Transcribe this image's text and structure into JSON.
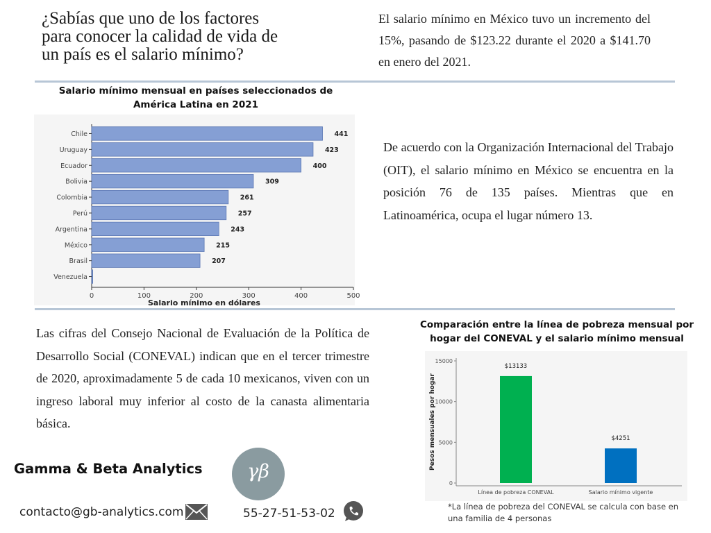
{
  "headline": "¿Sabías que uno de los factores para conocer la calidad de vida de un país es el salario mínimo?",
  "intro_text": "El salario mínimo en México tuvo un incremento del 15%, pasando de $123.22 durante el 2020 a $141.70 en enero del 2021.",
  "oit_text": "De acuerdo con la Organización Internacional del Trabajo (OIT), el salario mínimo en México se encuentra en la posición 76 de 135 países. Mientras que en Latinoamérica, ocupa el lugar número 13.",
  "coneval_text": "Las cifras del Consejo Nacional de Evaluación de la Política de Desarrollo Social (CONEVAL) indican que en el tercer trimestre de 2020, aproximadamente  5 de cada 10 mexicanos, viven con un ingreso laboral muy inferior al costo de la canasta alimentaria básica.",
  "chart_data": [
    {
      "type": "bar",
      "orientation": "horizontal",
      "title": "Salario mínimo mensual en países seleccionados de América Latina en 2021",
      "xlabel": "Salario mínimo en dólares",
      "ylabel": "",
      "categories": [
        "Chile",
        "Uruguay",
        "Ecuador",
        "Bolivia",
        "Colombia",
        "Perú",
        "Argentina",
        "México",
        "Brasil",
        "Venezuela"
      ],
      "values": [
        441,
        423,
        400,
        309,
        261,
        257,
        243,
        215,
        207,
        2
      ],
      "data_labels": [
        "441",
        "423",
        "400",
        "309",
        "261",
        "257",
        "243",
        "215",
        "207",
        ""
      ],
      "xlim": [
        0,
        500
      ],
      "xticks": [
        0,
        100,
        200,
        300,
        400,
        500
      ],
      "bar_color": "#859fd4",
      "bar_edge": "#5b77b3",
      "grid": false
    },
    {
      "type": "bar",
      "orientation": "vertical",
      "title": "Comparación entre la línea de pobreza mensual por hogar del CONEVAL y el salario mínimo mensual",
      "xlabel": "",
      "ylabel": "Pesos mensuales por hogar",
      "categories": [
        "Línea de pobreza CONEVAL",
        "Salario mínimo vigente"
      ],
      "values": [
        13133,
        4251
      ],
      "data_labels": [
        "$13133",
        "$4251"
      ],
      "colors": [
        "#00b050",
        "#0070c0"
      ],
      "ylim": [
        0,
        15000
      ],
      "yticks": [
        0,
        5000,
        10000,
        15000
      ],
      "grid": false
    }
  ],
  "note_text": "*La línea de pobreza del CONEVAL  se calcula con  base  en una familia de 4 personas",
  "company_name": "Gamma & Beta  Analytics",
  "logo_text": "γβ",
  "email": "contacto@gb-analytics.com",
  "phone": "55-27-51-53-02",
  "icons": {
    "email": "mail-icon",
    "phone": "whatsapp-icon",
    "logo": "gamma-beta-logo"
  },
  "colors": {
    "rule": "#b7c6d6",
    "logo_bg": "#8a9ba0"
  }
}
